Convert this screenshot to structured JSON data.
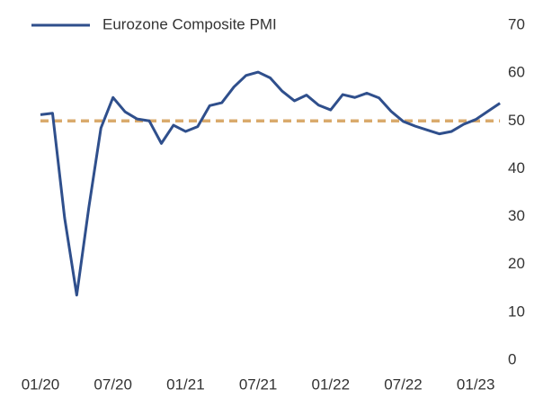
{
  "chart_data": {
    "type": "line",
    "categories": [
      "01/20",
      null,
      null,
      null,
      null,
      null,
      "07/20",
      null,
      null,
      null,
      null,
      null,
      "01/21",
      null,
      null,
      null,
      null,
      null,
      "07/21",
      null,
      null,
      null,
      null,
      null,
      "01/22",
      null,
      null,
      null,
      null,
      null,
      "07/22",
      null,
      null,
      null,
      null,
      null,
      "01/23",
      null,
      null
    ],
    "series": [
      {
        "name": "Eurozone Composite PMI",
        "color": "#2f4f8c",
        "values": [
          51.3,
          51.6,
          29.7,
          13.6,
          31.9,
          48.5,
          54.9,
          51.9,
          50.4,
          50.0,
          45.3,
          49.1,
          47.8,
          48.8,
          53.2,
          53.8,
          57.1,
          59.5,
          60.2,
          59.0,
          56.2,
          54.2,
          55.4,
          53.3,
          52.3,
          55.5,
          54.9,
          55.8,
          54.8,
          52.0,
          49.9,
          48.9,
          48.1,
          47.3,
          47.8,
          49.3,
          50.3,
          52.0,
          53.7
        ]
      }
    ],
    "reference_line": {
      "value": 50,
      "color": "#d9aa6c"
    },
    "ylim": [
      0,
      70
    ],
    "yticks": [
      0,
      10,
      20,
      30,
      40,
      50,
      60,
      70
    ],
    "y_axis_side": "right",
    "grid": false,
    "legend": "top-left"
  }
}
